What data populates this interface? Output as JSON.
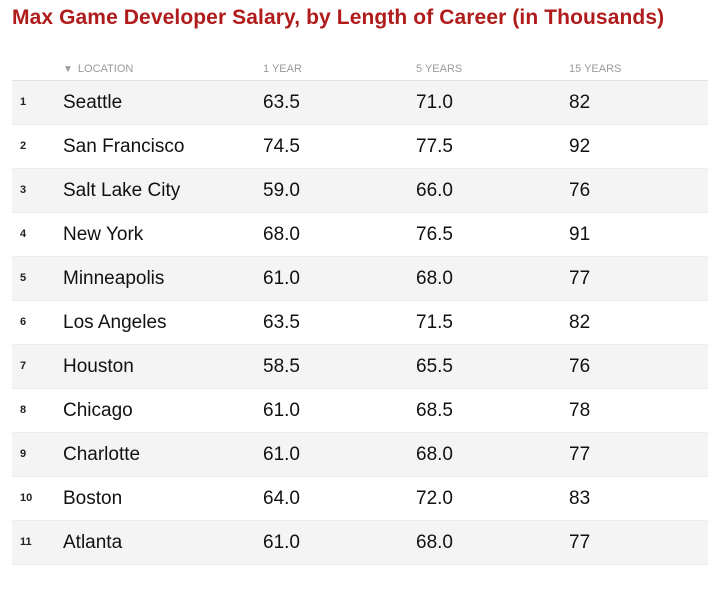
{
  "title": "Max Game Developer Salary, by Length of Career (in Thousands)",
  "table": {
    "sort_icon": "▼",
    "sort_icon_name": "sort-descending-icon",
    "headers": [
      "LOCATION",
      "1 YEAR",
      "5 YEARS",
      "15 YEARS"
    ],
    "rows": [
      {
        "rank": "1",
        "location": "Seattle",
        "y1": "63.5",
        "y5": "71.0",
        "y15": "82"
      },
      {
        "rank": "2",
        "location": "San Francisco",
        "y1": "74.5",
        "y5": "77.5",
        "y15": "92"
      },
      {
        "rank": "3",
        "location": "Salt Lake City",
        "y1": "59.0",
        "y5": "66.0",
        "y15": "76"
      },
      {
        "rank": "4",
        "location": "New York",
        "y1": "68.0",
        "y5": "76.5",
        "y15": "91"
      },
      {
        "rank": "5",
        "location": "Minneapolis",
        "y1": "61.0",
        "y5": "68.0",
        "y15": "77"
      },
      {
        "rank": "6",
        "location": "Los Angeles",
        "y1": "63.5",
        "y5": "71.5",
        "y15": "82"
      },
      {
        "rank": "7",
        "location": "Houston",
        "y1": "58.5",
        "y5": "65.5",
        "y15": "76"
      },
      {
        "rank": "8",
        "location": "Chicago",
        "y1": "61.0",
        "y5": "68.5",
        "y15": "78"
      },
      {
        "rank": "9",
        "location": "Charlotte",
        "y1": "61.0",
        "y5": "68.0",
        "y15": "77"
      },
      {
        "rank": "10",
        "location": "Boston",
        "y1": "64.0",
        "y5": "72.0",
        "y15": "83"
      },
      {
        "rank": "11",
        "location": "Atlanta",
        "y1": "61.0",
        "y5": "68.0",
        "y15": "77"
      }
    ]
  },
  "colors": {
    "title": "#b01b1b",
    "header_text": "#9a9a9a",
    "stripe": "#f4f4f4"
  },
  "chart_data": {
    "type": "table",
    "title": "Max Game Developer Salary, by Length of Career (in Thousands)",
    "columns": [
      "LOCATION",
      "1 YEAR",
      "5 YEARS",
      "15 YEARS"
    ],
    "categories": [
      "Seattle",
      "San Francisco",
      "Salt Lake City",
      "New York",
      "Minneapolis",
      "Los Angeles",
      "Houston",
      "Chicago",
      "Charlotte",
      "Boston",
      "Atlanta"
    ],
    "series": [
      {
        "name": "1 YEAR",
        "values": [
          63.5,
          74.5,
          59.0,
          68.0,
          61.0,
          63.5,
          58.5,
          61.0,
          61.0,
          64.0,
          61.0
        ]
      },
      {
        "name": "5 YEARS",
        "values": [
          71.0,
          77.5,
          66.0,
          76.5,
          68.0,
          71.5,
          65.5,
          68.5,
          68.0,
          72.0,
          68.0
        ]
      },
      {
        "name": "15 YEARS",
        "values": [
          82,
          92,
          76,
          91,
          77,
          82,
          76,
          78,
          77,
          83,
          77
        ]
      }
    ]
  }
}
